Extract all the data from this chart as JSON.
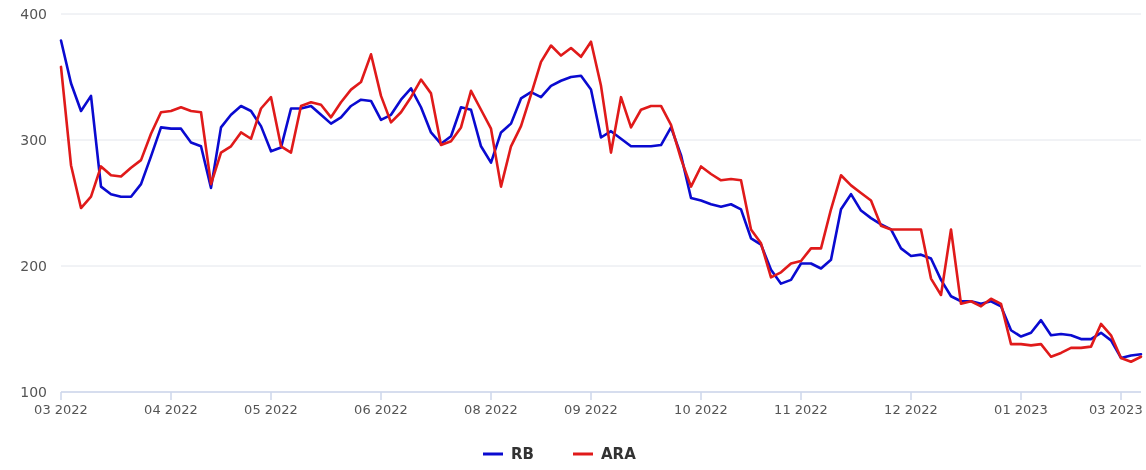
{
  "chart_data": {
    "type": "line",
    "ylim": [
      100,
      400
    ],
    "yticks": [
      100,
      200,
      300,
      400
    ],
    "categories": [
      "03 2022",
      null,
      null,
      null,
      null,
      null,
      null,
      null,
      null,
      null,
      null,
      "04 2022",
      null,
      null,
      null,
      null,
      null,
      null,
      null,
      null,
      null,
      "05 2022",
      null,
      null,
      null,
      null,
      null,
      null,
      null,
      null,
      null,
      null,
      "06 2022",
      null,
      null,
      null,
      null,
      null,
      null,
      null,
      null,
      null,
      null,
      "08 2022",
      null,
      null,
      null,
      null,
      null,
      null,
      null,
      null,
      null,
      "09 2022",
      null,
      null,
      null,
      null,
      null,
      null,
      null,
      null,
      null,
      null,
      "10 2022",
      null,
      null,
      null,
      null,
      null,
      null,
      null,
      null,
      null,
      "11 2022",
      null,
      null,
      null,
      null,
      null,
      null,
      null,
      null,
      null,
      null,
      "12 2022",
      null,
      null,
      null,
      null,
      null,
      null,
      null,
      null,
      null,
      null,
      "01 2023",
      null,
      null,
      null,
      null,
      null,
      null,
      null,
      null,
      null,
      "03 2023",
      null,
      null
    ],
    "grid": "y",
    "legend": "bottom",
    "line_style": "solid",
    "series": [
      {
        "name": "RB",
        "color": "#0a0ad0",
        "values": [
          379,
          345,
          323,
          335,
          263,
          257,
          255,
          255,
          265,
          287,
          310,
          309,
          309,
          298,
          295,
          262,
          310,
          320,
          327,
          323,
          311,
          291,
          294,
          325,
          325,
          327,
          320,
          313,
          318,
          327,
          332,
          331,
          316,
          320,
          332,
          341,
          326,
          306,
          297,
          303,
          326,
          324,
          295,
          282,
          306,
          313,
          333,
          338,
          334,
          343,
          347,
          350,
          351,
          340,
          302,
          307,
          301,
          295,
          295,
          295,
          296,
          310,
          288,
          254,
          252,
          249,
          247,
          249,
          245,
          222,
          217,
          197,
          186,
          189,
          202,
          202,
          198,
          205,
          245,
          257,
          244,
          238,
          233,
          229,
          214,
          208,
          209,
          206,
          189,
          176,
          172,
          172,
          170,
          172,
          168,
          149,
          144,
          147,
          157,
          145,
          146,
          145,
          142,
          142,
          147,
          141,
          127,
          129,
          130
        ]
      },
      {
        "name": "ARA",
        "color": "#e01a1a",
        "values": [
          358,
          280,
          246,
          255,
          279,
          272,
          271,
          278,
          284,
          305,
          322,
          323,
          326,
          323,
          322,
          265,
          290,
          295,
          306,
          301,
          325,
          334,
          295,
          290,
          327,
          330,
          328,
          318,
          330,
          340,
          346,
          368,
          335,
          314,
          322,
          334,
          348,
          337,
          296,
          299,
          310,
          339,
          324,
          309,
          263,
          295,
          311,
          336,
          362,
          375,
          367,
          373,
          366,
          378,
          343,
          290,
          334,
          310,
          324,
          327,
          327,
          312,
          285,
          263,
          279,
          273,
          268,
          269,
          268,
          229,
          218,
          191,
          195,
          202,
          204,
          214,
          214,
          245,
          272,
          264,
          258,
          252,
          232,
          229,
          229,
          229,
          229,
          190,
          177,
          229,
          170,
          172,
          168,
          174,
          170,
          138,
          138,
          137,
          138,
          128,
          131,
          135,
          135,
          136,
          154,
          145,
          127,
          124,
          128
        ]
      }
    ]
  }
}
